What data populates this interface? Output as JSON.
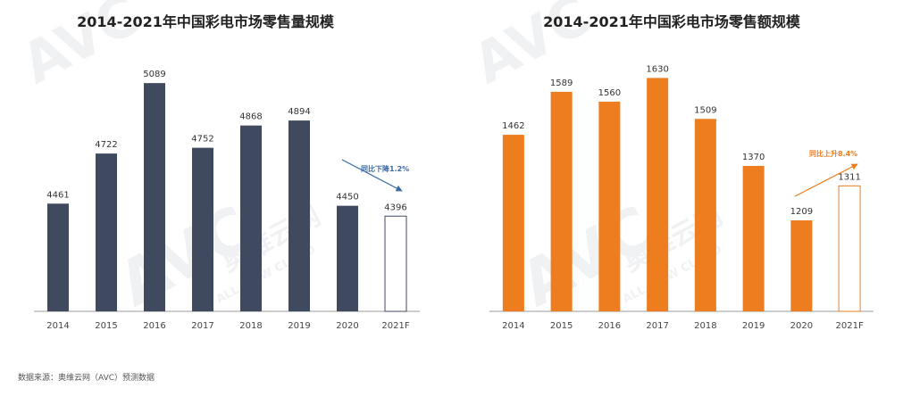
{
  "colors": {
    "volume_bar": "#3f4a5f",
    "amount_bar": "#ee7d1f",
    "forecast_fill": "#ffffff",
    "axis": "#999999",
    "volume_note": "#3b6aa6",
    "amount_note": "#ee7d1f",
    "watermark": "#dfe3e7"
  },
  "watermark": {
    "brand": "AVC",
    "cn": "奥维云网",
    "en": "ALL VIEW CLOUD"
  },
  "source": "数据来源：奥维云网（AVC）预测数据",
  "chart_data": [
    {
      "type": "bar",
      "title": "2014-2021年中国彩电市场零售量规模",
      "categories": [
        "2014",
        "2015",
        "2016",
        "2017",
        "2018",
        "2019",
        "2020",
        "2021F"
      ],
      "values": [
        4461,
        4722,
        5089,
        4752,
        4868,
        4894,
        4450,
        4396
      ],
      "forecast_index": 7,
      "annotation": "同比下降1.2%",
      "annotation_trend": "down",
      "ylim": [
        3900,
        5150
      ],
      "grid": false,
      "legend": "none"
    },
    {
      "type": "bar",
      "title": "2014-2021年中国彩电市场零售额规模",
      "categories": [
        "2014",
        "2015",
        "2016",
        "2017",
        "2018",
        "2019",
        "2020",
        "2021F"
      ],
      "values": [
        1462,
        1589,
        1560,
        1630,
        1509,
        1370,
        1209,
        1311
      ],
      "forecast_index": 7,
      "annotation": "同比上升8.4%",
      "annotation_trend": "up",
      "ylim": [
        940,
        1660
      ],
      "grid": false,
      "legend": "none"
    }
  ]
}
